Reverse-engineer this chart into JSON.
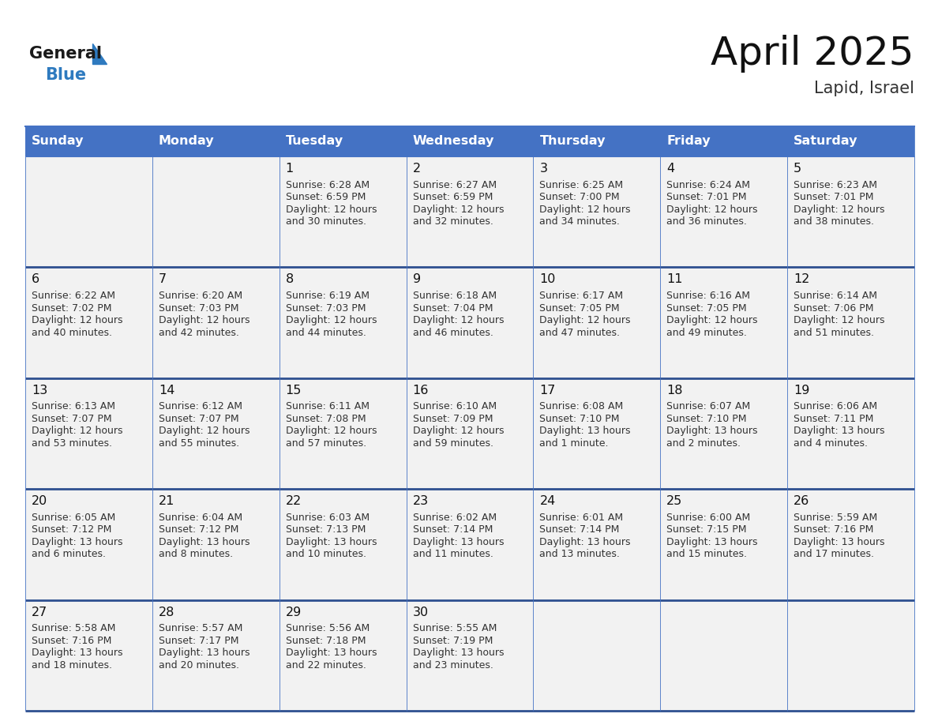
{
  "title": "April 2025",
  "subtitle": "Lapid, Israel",
  "header_bg": "#4472C4",
  "header_text_color": "#FFFFFF",
  "cell_bg_odd": "#F2F2F2",
  "cell_bg_even": "#FFFFFF",
  "cell_border_color": "#4472C4",
  "row_border_color": "#2E5090",
  "day_names": [
    "Sunday",
    "Monday",
    "Tuesday",
    "Wednesday",
    "Thursday",
    "Friday",
    "Saturday"
  ],
  "days": [
    {
      "day": 1,
      "col": 2,
      "row": 0,
      "sunrise": "6:28 AM",
      "sunset": "6:59 PM",
      "daylight_hrs": 12,
      "daylight_min": 30
    },
    {
      "day": 2,
      "col": 3,
      "row": 0,
      "sunrise": "6:27 AM",
      "sunset": "6:59 PM",
      "daylight_hrs": 12,
      "daylight_min": 32
    },
    {
      "day": 3,
      "col": 4,
      "row": 0,
      "sunrise": "6:25 AM",
      "sunset": "7:00 PM",
      "daylight_hrs": 12,
      "daylight_min": 34
    },
    {
      "day": 4,
      "col": 5,
      "row": 0,
      "sunrise": "6:24 AM",
      "sunset": "7:01 PM",
      "daylight_hrs": 12,
      "daylight_min": 36
    },
    {
      "day": 5,
      "col": 6,
      "row": 0,
      "sunrise": "6:23 AM",
      "sunset": "7:01 PM",
      "daylight_hrs": 12,
      "daylight_min": 38
    },
    {
      "day": 6,
      "col": 0,
      "row": 1,
      "sunrise": "6:22 AM",
      "sunset": "7:02 PM",
      "daylight_hrs": 12,
      "daylight_min": 40
    },
    {
      "day": 7,
      "col": 1,
      "row": 1,
      "sunrise": "6:20 AM",
      "sunset": "7:03 PM",
      "daylight_hrs": 12,
      "daylight_min": 42
    },
    {
      "day": 8,
      "col": 2,
      "row": 1,
      "sunrise": "6:19 AM",
      "sunset": "7:03 PM",
      "daylight_hrs": 12,
      "daylight_min": 44
    },
    {
      "day": 9,
      "col": 3,
      "row": 1,
      "sunrise": "6:18 AM",
      "sunset": "7:04 PM",
      "daylight_hrs": 12,
      "daylight_min": 46
    },
    {
      "day": 10,
      "col": 4,
      "row": 1,
      "sunrise": "6:17 AM",
      "sunset": "7:05 PM",
      "daylight_hrs": 12,
      "daylight_min": 47
    },
    {
      "day": 11,
      "col": 5,
      "row": 1,
      "sunrise": "6:16 AM",
      "sunset": "7:05 PM",
      "daylight_hrs": 12,
      "daylight_min": 49
    },
    {
      "day": 12,
      "col": 6,
      "row": 1,
      "sunrise": "6:14 AM",
      "sunset": "7:06 PM",
      "daylight_hrs": 12,
      "daylight_min": 51
    },
    {
      "day": 13,
      "col": 0,
      "row": 2,
      "sunrise": "6:13 AM",
      "sunset": "7:07 PM",
      "daylight_hrs": 12,
      "daylight_min": 53
    },
    {
      "day": 14,
      "col": 1,
      "row": 2,
      "sunrise": "6:12 AM",
      "sunset": "7:07 PM",
      "daylight_hrs": 12,
      "daylight_min": 55
    },
    {
      "day": 15,
      "col": 2,
      "row": 2,
      "sunrise": "6:11 AM",
      "sunset": "7:08 PM",
      "daylight_hrs": 12,
      "daylight_min": 57
    },
    {
      "day": 16,
      "col": 3,
      "row": 2,
      "sunrise": "6:10 AM",
      "sunset": "7:09 PM",
      "daylight_hrs": 12,
      "daylight_min": 59
    },
    {
      "day": 17,
      "col": 4,
      "row": 2,
      "sunrise": "6:08 AM",
      "sunset": "7:10 PM",
      "daylight_hrs": 13,
      "daylight_min": 1
    },
    {
      "day": 18,
      "col": 5,
      "row": 2,
      "sunrise": "6:07 AM",
      "sunset": "7:10 PM",
      "daylight_hrs": 13,
      "daylight_min": 2
    },
    {
      "day": 19,
      "col": 6,
      "row": 2,
      "sunrise": "6:06 AM",
      "sunset": "7:11 PM",
      "daylight_hrs": 13,
      "daylight_min": 4
    },
    {
      "day": 20,
      "col": 0,
      "row": 3,
      "sunrise": "6:05 AM",
      "sunset": "7:12 PM",
      "daylight_hrs": 13,
      "daylight_min": 6
    },
    {
      "day": 21,
      "col": 1,
      "row": 3,
      "sunrise": "6:04 AM",
      "sunset": "7:12 PM",
      "daylight_hrs": 13,
      "daylight_min": 8
    },
    {
      "day": 22,
      "col": 2,
      "row": 3,
      "sunrise": "6:03 AM",
      "sunset": "7:13 PM",
      "daylight_hrs": 13,
      "daylight_min": 10
    },
    {
      "day": 23,
      "col": 3,
      "row": 3,
      "sunrise": "6:02 AM",
      "sunset": "7:14 PM",
      "daylight_hrs": 13,
      "daylight_min": 11
    },
    {
      "day": 24,
      "col": 4,
      "row": 3,
      "sunrise": "6:01 AM",
      "sunset": "7:14 PM",
      "daylight_hrs": 13,
      "daylight_min": 13
    },
    {
      "day": 25,
      "col": 5,
      "row": 3,
      "sunrise": "6:00 AM",
      "sunset": "7:15 PM",
      "daylight_hrs": 13,
      "daylight_min": 15
    },
    {
      "day": 26,
      "col": 6,
      "row": 3,
      "sunrise": "5:59 AM",
      "sunset": "7:16 PM",
      "daylight_hrs": 13,
      "daylight_min": 17
    },
    {
      "day": 27,
      "col": 0,
      "row": 4,
      "sunrise": "5:58 AM",
      "sunset": "7:16 PM",
      "daylight_hrs": 13,
      "daylight_min": 18
    },
    {
      "day": 28,
      "col": 1,
      "row": 4,
      "sunrise": "5:57 AM",
      "sunset": "7:17 PM",
      "daylight_hrs": 13,
      "daylight_min": 20
    },
    {
      "day": 29,
      "col": 2,
      "row": 4,
      "sunrise": "5:56 AM",
      "sunset": "7:18 PM",
      "daylight_hrs": 13,
      "daylight_min": 22
    },
    {
      "day": 30,
      "col": 3,
      "row": 4,
      "sunrise": "5:55 AM",
      "sunset": "7:19 PM",
      "daylight_hrs": 13,
      "daylight_min": 23
    }
  ],
  "num_rows": 5,
  "logo_general_color": "#1a1a1a",
  "logo_blue_color": "#2e7abf",
  "logo_triangle_color": "#2e7abf",
  "fig_width": 11.88,
  "fig_height": 9.18,
  "dpi": 100
}
